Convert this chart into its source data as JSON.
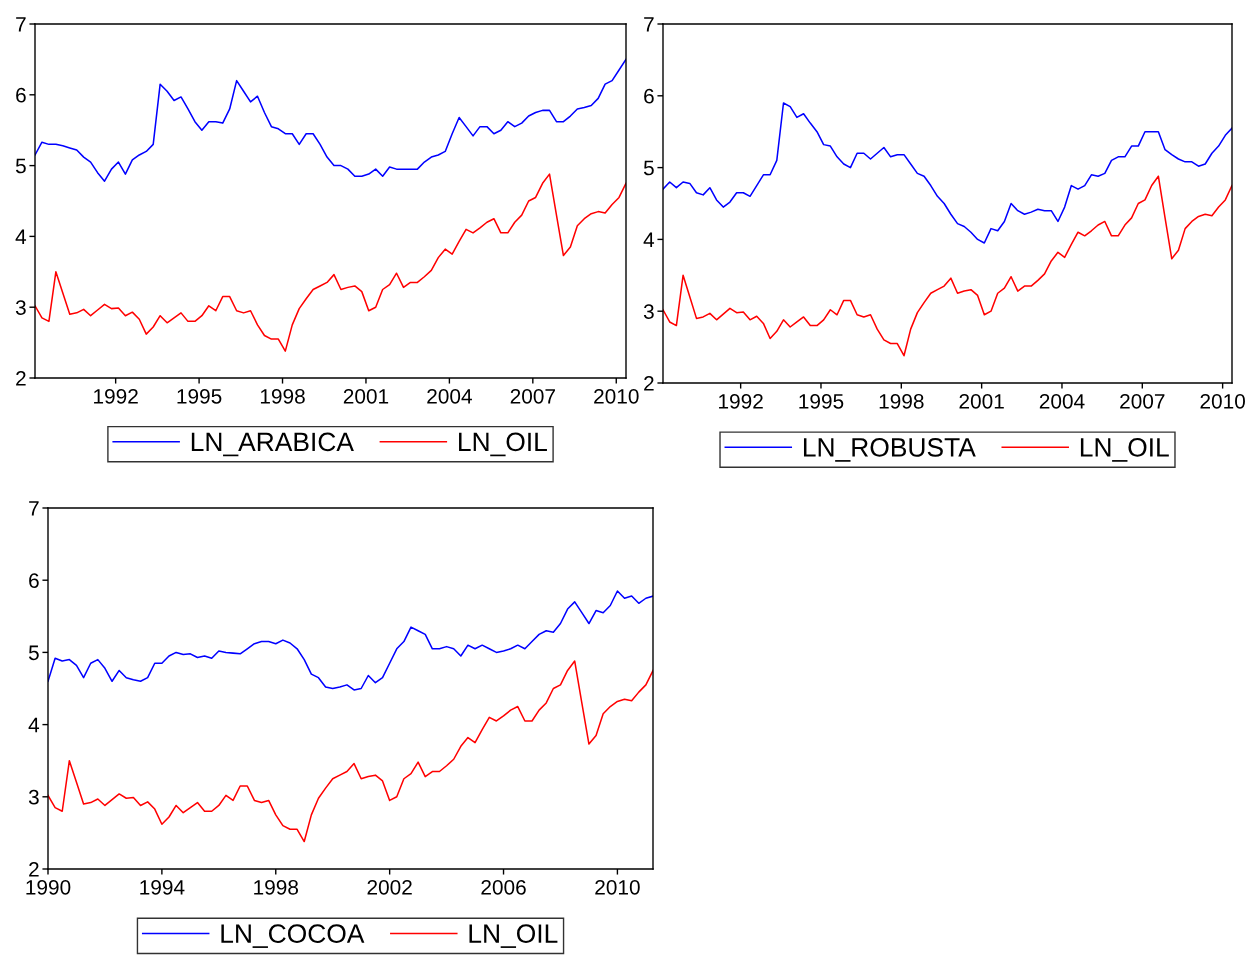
{
  "chart_data": [
    {
      "type": "line",
      "xlim": [
        1989.1,
        2010.35
      ],
      "xticks": [
        1992,
        1995,
        1998,
        2001,
        2004,
        2007,
        2010
      ],
      "ylim": [
        2,
        7
      ],
      "yticks": [
        2,
        3,
        4,
        5,
        6,
        7
      ],
      "legend": "bottom",
      "grid": false,
      "x": [
        1989.1,
        1989.35,
        1989.6,
        1989.85,
        1990.1,
        1990.35,
        1990.6,
        1990.85,
        1991.1,
        1991.35,
        1991.6,
        1991.85,
        1992.1,
        1992.35,
        1992.6,
        1992.85,
        1993.1,
        1993.35,
        1993.6,
        1993.85,
        1994.1,
        1994.35,
        1994.6,
        1994.85,
        1995.1,
        1995.35,
        1995.6,
        1995.85,
        1996.1,
        1996.35,
        1996.6,
        1996.85,
        1997.1,
        1997.35,
        1997.6,
        1997.85,
        1998.1,
        1998.35,
        1998.6,
        1998.85,
        1999.1,
        1999.35,
        1999.6,
        1999.85,
        2000.1,
        2000.35,
        2000.6,
        2000.85,
        2001.1,
        2001.35,
        2001.6,
        2001.85,
        2002.1,
        2002.35,
        2002.6,
        2002.85,
        2003.1,
        2003.35,
        2003.6,
        2003.85,
        2004.1,
        2004.35,
        2004.6,
        2004.85,
        2005.1,
        2005.35,
        2005.6,
        2005.85,
        2006.1,
        2006.35,
        2006.6,
        2006.85,
        2007.1,
        2007.35,
        2007.6,
        2007.85,
        2008.1,
        2008.35,
        2008.6,
        2008.85,
        2009.1,
        2009.35,
        2009.6,
        2009.85,
        2010.1,
        2010.35
      ],
      "series": [
        {
          "name": "LN_ARABICA",
          "color": "#0000ff",
          "values": [
            5.15,
            5.33,
            5.3,
            5.3,
            5.28,
            5.25,
            5.22,
            5.12,
            5.05,
            4.9,
            4.78,
            4.95,
            5.05,
            4.88,
            5.08,
            5.15,
            5.2,
            5.3,
            6.15,
            6.05,
            5.92,
            5.97,
            5.8,
            5.62,
            5.5,
            5.62,
            5.62,
            5.6,
            5.8,
            6.2,
            6.05,
            5.9,
            5.98,
            5.75,
            5.55,
            5.52,
            5.45,
            5.45,
            5.3,
            5.45,
            5.45,
            5.3,
            5.12,
            5.0,
            5.0,
            4.95,
            4.85,
            4.85,
            4.88,
            4.95,
            4.85,
            4.98,
            4.95,
            4.95,
            4.95,
            4.95,
            5.05,
            5.12,
            5.15,
            5.2,
            5.45,
            5.68,
            5.55,
            5.42,
            5.55,
            5.55,
            5.45,
            5.5,
            5.62,
            5.55,
            5.6,
            5.7,
            5.75,
            5.78,
            5.78,
            5.62,
            5.62,
            5.7,
            5.8,
            5.82,
            5.85,
            5.95,
            6.15,
            6.2,
            6.35,
            6.5
          ]
        },
        {
          "name": "LN_OIL",
          "color": "#ff0000",
          "values": [
            3.02,
            2.85,
            2.8,
            3.5,
            3.2,
            2.9,
            2.92,
            2.97,
            2.88,
            2.96,
            3.04,
            2.98,
            2.99,
            2.88,
            2.93,
            2.83,
            2.62,
            2.72,
            2.88,
            2.78,
            2.85,
            2.92,
            2.8,
            2.8,
            2.88,
            3.02,
            2.95,
            3.15,
            3.15,
            2.95,
            2.92,
            2.95,
            2.75,
            2.6,
            2.55,
            2.55,
            2.38,
            2.75,
            2.98,
            3.12,
            3.25,
            3.3,
            3.35,
            3.46,
            3.25,
            3.28,
            3.3,
            3.22,
            2.95,
            3.0,
            3.25,
            3.32,
            3.48,
            3.28,
            3.35,
            3.35,
            3.43,
            3.52,
            3.7,
            3.82,
            3.75,
            3.93,
            4.1,
            4.05,
            4.12,
            4.2,
            4.25,
            4.05,
            4.05,
            4.2,
            4.3,
            4.5,
            4.55,
            4.75,
            4.88,
            4.3,
            3.73,
            3.85,
            4.15,
            4.25,
            4.32,
            4.35,
            4.33,
            4.45,
            4.55,
            4.75
          ]
        }
      ]
    },
    {
      "type": "line",
      "xlim": [
        1989.1,
        2010.35
      ],
      "xticks": [
        1992,
        1995,
        1998,
        2001,
        2004,
        2007,
        2010
      ],
      "ylim": [
        2,
        7
      ],
      "yticks": [
        2,
        3,
        4,
        5,
        6,
        7
      ],
      "legend": "bottom",
      "grid": false,
      "x": [
        1989.1,
        1989.35,
        1989.6,
        1989.85,
        1990.1,
        1990.35,
        1990.6,
        1990.85,
        1991.1,
        1991.35,
        1991.6,
        1991.85,
        1992.1,
        1992.35,
        1992.6,
        1992.85,
        1993.1,
        1993.35,
        1993.6,
        1993.85,
        1994.1,
        1994.35,
        1994.6,
        1994.85,
        1995.1,
        1995.35,
        1995.6,
        1995.85,
        1996.1,
        1996.35,
        1996.6,
        1996.85,
        1997.1,
        1997.35,
        1997.6,
        1997.85,
        1998.1,
        1998.35,
        1998.6,
        1998.85,
        1999.1,
        1999.35,
        1999.6,
        1999.85,
        2000.1,
        2000.35,
        2000.6,
        2000.85,
        2001.1,
        2001.35,
        2001.6,
        2001.85,
        2002.1,
        2002.35,
        2002.6,
        2002.85,
        2003.1,
        2003.35,
        2003.6,
        2003.85,
        2004.1,
        2004.35,
        2004.6,
        2004.85,
        2005.1,
        2005.35,
        2005.6,
        2005.85,
        2006.1,
        2006.35,
        2006.6,
        2006.85,
        2007.1,
        2007.35,
        2007.6,
        2007.85,
        2008.1,
        2008.35,
        2008.6,
        2008.85,
        2009.1,
        2009.35,
        2009.6,
        2009.85,
        2010.1,
        2010.35
      ],
      "series": [
        {
          "name": "LN_ROBUSTA",
          "color": "#0000ff",
          "values": [
            4.7,
            4.8,
            4.72,
            4.8,
            4.78,
            4.65,
            4.62,
            4.72,
            4.55,
            4.45,
            4.52,
            4.65,
            4.65,
            4.6,
            4.75,
            4.9,
            4.9,
            5.1,
            5.9,
            5.85,
            5.7,
            5.75,
            5.62,
            5.5,
            5.32,
            5.3,
            5.15,
            5.05,
            5.0,
            5.2,
            5.2,
            5.12,
            5.2,
            5.28,
            5.15,
            5.18,
            5.18,
            5.05,
            4.92,
            4.88,
            4.75,
            4.6,
            4.5,
            4.35,
            4.22,
            4.18,
            4.1,
            4.0,
            3.95,
            4.15,
            4.12,
            4.25,
            4.5,
            4.4,
            4.35,
            4.38,
            4.42,
            4.4,
            4.4,
            4.25,
            4.45,
            4.75,
            4.7,
            4.75,
            4.9,
            4.88,
            4.92,
            5.1,
            5.15,
            5.15,
            5.3,
            5.3,
            5.5,
            5.5,
            5.5,
            5.25,
            5.18,
            5.12,
            5.08,
            5.08,
            5.02,
            5.05,
            5.2,
            5.3,
            5.45,
            5.55
          ]
        },
        {
          "name": "LN_OIL",
          "color": "#ff0000",
          "values": [
            3.02,
            2.85,
            2.8,
            3.5,
            3.2,
            2.9,
            2.92,
            2.97,
            2.88,
            2.96,
            3.04,
            2.98,
            2.99,
            2.88,
            2.93,
            2.83,
            2.62,
            2.72,
            2.88,
            2.78,
            2.85,
            2.92,
            2.8,
            2.8,
            2.88,
            3.02,
            2.95,
            3.15,
            3.15,
            2.95,
            2.92,
            2.95,
            2.75,
            2.6,
            2.55,
            2.55,
            2.38,
            2.75,
            2.98,
            3.12,
            3.25,
            3.3,
            3.35,
            3.46,
            3.25,
            3.28,
            3.3,
            3.22,
            2.95,
            3.0,
            3.25,
            3.32,
            3.48,
            3.28,
            3.35,
            3.35,
            3.43,
            3.52,
            3.7,
            3.82,
            3.75,
            3.93,
            4.1,
            4.05,
            4.12,
            4.2,
            4.25,
            4.05,
            4.05,
            4.2,
            4.3,
            4.5,
            4.55,
            4.75,
            4.88,
            4.3,
            3.73,
            3.85,
            4.15,
            4.25,
            4.32,
            4.35,
            4.33,
            4.45,
            4.55,
            4.75
          ]
        }
      ]
    },
    {
      "type": "line",
      "xlim": [
        1990,
        2011.25
      ],
      "xticks": [
        1990,
        1994,
        1998,
        2002,
        2006,
        2010
      ],
      "ylim": [
        2,
        7
      ],
      "yticks": [
        2,
        3,
        4,
        5,
        6,
        7
      ],
      "legend": "bottom",
      "grid": false,
      "x": [
        1990,
        1990.25,
        1990.5,
        1990.75,
        1991,
        1991.25,
        1991.5,
        1991.75,
        1992,
        1992.25,
        1992.5,
        1992.75,
        1993,
        1993.25,
        1993.5,
        1993.75,
        1994,
        1994.25,
        1994.5,
        1994.75,
        1995,
        1995.25,
        1995.5,
        1995.75,
        1996,
        1996.25,
        1996.5,
        1996.75,
        1997,
        1997.25,
        1997.5,
        1997.75,
        1998,
        1998.25,
        1998.5,
        1998.75,
        1999,
        1999.25,
        1999.5,
        1999.75,
        2000,
        2000.25,
        2000.5,
        2000.75,
        2001,
        2001.25,
        2001.5,
        2001.75,
        2002,
        2002.25,
        2002.5,
        2002.75,
        2003,
        2003.25,
        2003.5,
        2003.75,
        2004,
        2004.25,
        2004.5,
        2004.75,
        2005,
        2005.25,
        2005.5,
        2005.75,
        2006,
        2006.25,
        2006.5,
        2006.75,
        2007,
        2007.25,
        2007.5,
        2007.75,
        2008,
        2008.25,
        2008.5,
        2008.75,
        2009,
        2009.25,
        2009.5,
        2009.75,
        2010,
        2010.25,
        2010.5,
        2010.75,
        2011,
        2011.25
      ],
      "series": [
        {
          "name": "LN_COCOA",
          "color": "#0000ff",
          "values": [
            4.6,
            4.92,
            4.88,
            4.9,
            4.82,
            4.65,
            4.85,
            4.9,
            4.78,
            4.6,
            4.75,
            4.65,
            4.62,
            4.6,
            4.65,
            4.85,
            4.85,
            4.95,
            5.0,
            4.97,
            4.98,
            4.93,
            4.95,
            4.92,
            5.02,
            5.0,
            4.99,
            4.98,
            5.05,
            5.12,
            5.15,
            5.15,
            5.12,
            5.17,
            5.13,
            5.05,
            4.9,
            4.7,
            4.65,
            4.52,
            4.5,
            4.52,
            4.55,
            4.48,
            4.5,
            4.68,
            4.58,
            4.65,
            4.85,
            5.05,
            5.15,
            5.35,
            5.3,
            5.25,
            5.05,
            5.05,
            5.08,
            5.05,
            4.95,
            5.1,
            5.05,
            5.1,
            5.05,
            5.0,
            5.02,
            5.05,
            5.1,
            5.05,
            5.15,
            5.25,
            5.3,
            5.28,
            5.4,
            5.6,
            5.7,
            5.55,
            5.4,
            5.58,
            5.55,
            5.65,
            5.85,
            5.75,
            5.78,
            5.68,
            5.75,
            5.78
          ]
        },
        {
          "name": "LN_OIL",
          "color": "#ff0000",
          "values": [
            3.02,
            2.85,
            2.8,
            3.5,
            3.2,
            2.9,
            2.92,
            2.97,
            2.88,
            2.96,
            3.04,
            2.98,
            2.99,
            2.88,
            2.93,
            2.83,
            2.62,
            2.72,
            2.88,
            2.78,
            2.85,
            2.92,
            2.8,
            2.8,
            2.88,
            3.02,
            2.95,
            3.15,
            3.15,
            2.95,
            2.92,
            2.95,
            2.75,
            2.6,
            2.55,
            2.55,
            2.38,
            2.75,
            2.98,
            3.12,
            3.25,
            3.3,
            3.35,
            3.46,
            3.25,
            3.28,
            3.3,
            3.22,
            2.95,
            3.0,
            3.25,
            3.32,
            3.48,
            3.28,
            3.35,
            3.35,
            3.43,
            3.52,
            3.7,
            3.82,
            3.75,
            3.93,
            4.1,
            4.05,
            4.12,
            4.2,
            4.25,
            4.05,
            4.05,
            4.2,
            4.3,
            4.5,
            4.55,
            4.75,
            4.88,
            4.3,
            3.73,
            3.85,
            4.15,
            4.25,
            4.32,
            4.35,
            4.33,
            4.45,
            4.55,
            4.75
          ]
        }
      ]
    }
  ]
}
